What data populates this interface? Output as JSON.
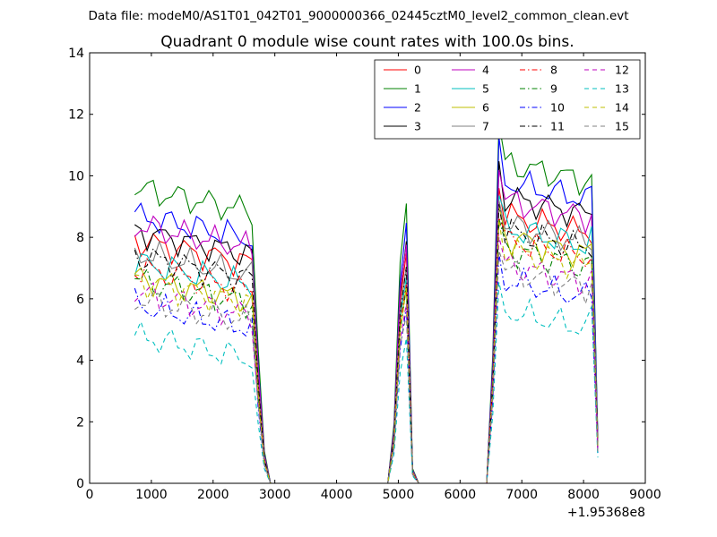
{
  "suptitle": "Data file: modeM0/AS1T01_042T01_9000000366_02445cztM0_level2_common_clean.evt",
  "chart_data": {
    "type": "line",
    "title": "Quadrant 0 module wise count rates with 100.0s bins.",
    "xlabel": "",
    "ylabel": "",
    "x_offset_label": "+1.95368e8",
    "xlim": [
      0,
      9000
    ],
    "ylim": [
      0,
      14
    ],
    "x_ticks": [
      0,
      1000,
      2000,
      3000,
      4000,
      5000,
      6000,
      7000,
      8000,
      9000
    ],
    "y_ticks": [
      0,
      2,
      4,
      6,
      8,
      10,
      12,
      14
    ],
    "grid": false,
    "legend_position": "top-right",
    "legend_columns": 4,
    "x": [
      730,
      830,
      930,
      1030,
      1130,
      1230,
      1330,
      1430,
      1530,
      1630,
      1730,
      1830,
      1930,
      2030,
      2130,
      2230,
      2330,
      2430,
      2530,
      2630,
      2730,
      2830,
      2930,
      3030,
      3130,
      3230,
      3330,
      3430,
      3530,
      3630,
      3730,
      3830,
      3930,
      4030,
      4130,
      4230,
      4330,
      4430,
      4530,
      4630,
      4730,
      4830,
      4930,
      5030,
      5130,
      5230,
      5330,
      5430,
      5530,
      5630,
      5730,
      5830,
      5930,
      6030,
      6130,
      6230,
      6330,
      6430,
      6530,
      6630,
      6730,
      6830,
      6930,
      7030,
      7130,
      7230,
      7330,
      7430,
      7530,
      7630,
      7730,
      7830,
      7930,
      8030,
      8130,
      8230
    ],
    "series": [
      {
        "name": "0",
        "color": "#ff0000",
        "dash": "solid",
        "level": 7.9,
        "level2": 8.7
      },
      {
        "name": "1",
        "color": "#008000",
        "dash": "solid",
        "level": 9.6,
        "level2": 10.4
      },
      {
        "name": "2",
        "color": "#0000ff",
        "dash": "solid",
        "level": 8.7,
        "level2": 9.8
      },
      {
        "name": "3",
        "color": "#000000",
        "dash": "solid",
        "level": 8.2,
        "level2": 9.3
      },
      {
        "name": "4",
        "color": "#bf00bf",
        "dash": "solid",
        "level": 8.4,
        "level2": 9.2
      },
      {
        "name": "5",
        "color": "#00bfbf",
        "dash": "solid",
        "level": 7.2,
        "level2": 8.3
      },
      {
        "name": "6",
        "color": "#bfbf00",
        "dash": "solid",
        "level": 6.7,
        "level2": 8.0
      },
      {
        "name": "7",
        "color": "#808080",
        "dash": "solid",
        "level": 7.5,
        "level2": 8.4
      },
      {
        "name": "8",
        "color": "#ff0000",
        "dash": "dashdot",
        "level": 7.0,
        "level2": 7.9
      },
      {
        "name": "9",
        "color": "#008000",
        "dash": "dashdot",
        "level": 6.6,
        "level2": 7.6
      },
      {
        "name": "10",
        "color": "#0000ff",
        "dash": "dashdot",
        "level": 5.8,
        "level2": 6.6
      },
      {
        "name": "11",
        "color": "#000000",
        "dash": "dashdot",
        "level": 7.4,
        "level2": 8.2
      },
      {
        "name": "12",
        "color": "#bf00bf",
        "dash": "dashed",
        "level": 6.2,
        "level2": 7.1
      },
      {
        "name": "13",
        "color": "#00bfbf",
        "dash": "dashed",
        "level": 4.8,
        "level2": 5.6
      },
      {
        "name": "14",
        "color": "#bfbf00",
        "dash": "dashed",
        "level": 6.6,
        "level2": 7.6
      },
      {
        "name": "15",
        "color": "#808080",
        "dash": "dashed",
        "level": 6.0,
        "level2": 6.9
      }
    ]
  }
}
